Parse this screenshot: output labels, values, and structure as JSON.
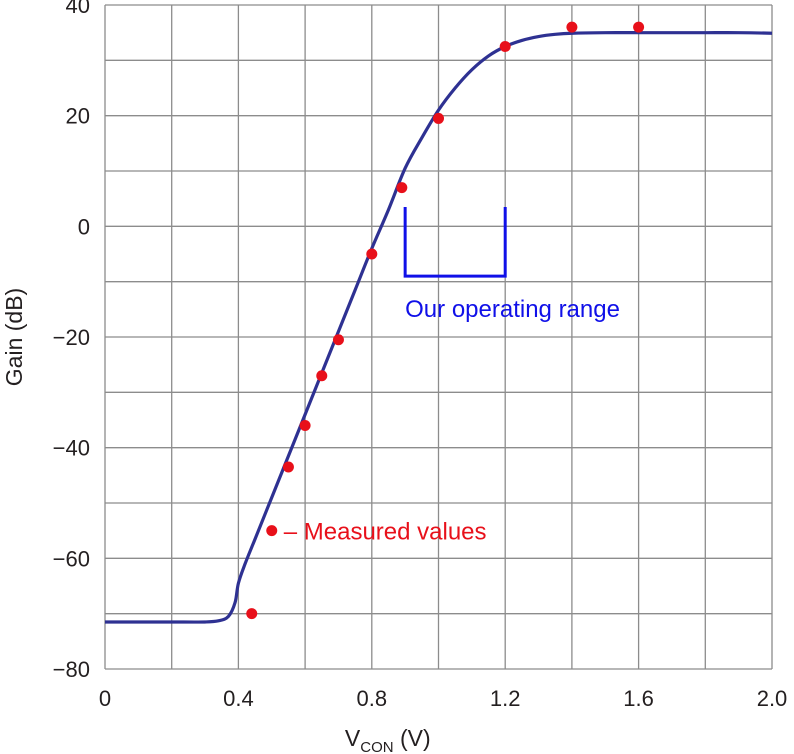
{
  "chart_data": {
    "type": "line",
    "xlabel_main": "V",
    "xlabel_sub": "CON",
    "xlabel_unit": " (V)",
    "ylabel": "Gain (dB)",
    "xlim": [
      0,
      2.0
    ],
    "ylim": [
      -80,
      40
    ],
    "grid": true,
    "x_grid_step": 0.2,
    "y_grid_step": 10,
    "x_tick_labels": [
      {
        "value": 0,
        "label": "0"
      },
      {
        "value": 0.4,
        "label": "0.4"
      },
      {
        "value": 0.8,
        "label": "0.8"
      },
      {
        "value": 1.2,
        "label": "1.2"
      },
      {
        "value": 1.6,
        "label": "1.6"
      },
      {
        "value": 2.0,
        "label": "2.0"
      }
    ],
    "y_tick_labels": [
      {
        "value": 40,
        "label": "40"
      },
      {
        "value": 20,
        "label": "20"
      },
      {
        "value": 0,
        "label": "0"
      },
      {
        "value": -20,
        "label": "−20"
      },
      {
        "value": -40,
        "label": "−40"
      },
      {
        "value": -60,
        "label": "−60"
      },
      {
        "value": -80,
        "label": "−80"
      }
    ],
    "series": [
      {
        "kind": "line",
        "color": "#2e3192",
        "x": [
          0,
          0.1,
          0.2,
          0.3,
          0.34,
          0.37,
          0.39,
          0.4,
          0.42,
          0.45,
          0.5,
          0.55,
          0.6,
          0.65,
          0.7,
          0.75,
          0.8,
          0.85,
          0.9,
          0.95,
          1.0,
          1.05,
          1.1,
          1.15,
          1.2,
          1.25,
          1.3,
          1.35,
          1.4,
          1.5,
          1.6,
          1.7,
          1.8,
          1.9,
          2.0
        ],
        "y": [
          -71.5,
          -71.5,
          -71.5,
          -71.5,
          -71.3,
          -70.5,
          -68,
          -64.5,
          -61,
          -56.5,
          -49,
          -41.5,
          -34,
          -26.5,
          -19,
          -11.5,
          -4,
          3,
          10.5,
          16,
          21,
          25,
          28.3,
          30.8,
          32.5,
          33.6,
          34.3,
          34.7,
          34.9,
          35,
          35,
          35,
          35,
          35,
          34.9
        ]
      },
      {
        "kind": "scatter",
        "name": "Measured values",
        "color": "#e8101a",
        "x": [
          0.44,
          0.55,
          0.6,
          0.65,
          0.7,
          0.8,
          0.89,
          1.0,
          1.2,
          1.4,
          1.6
        ],
        "y": [
          -70,
          -43.5,
          -36,
          -27,
          -20.5,
          -5,
          7,
          19.5,
          32.5,
          36,
          36
        ]
      }
    ],
    "annotations": [
      {
        "text": "– Measured values",
        "marker_x": 0.5,
        "marker_y": -55,
        "color": "#e8101a"
      },
      {
        "text": "Our operating range",
        "x_start": 0.9,
        "x_end": 1.2,
        "y_top": 3.5,
        "y_bottom": -9,
        "color": "#1010e8"
      }
    ]
  }
}
